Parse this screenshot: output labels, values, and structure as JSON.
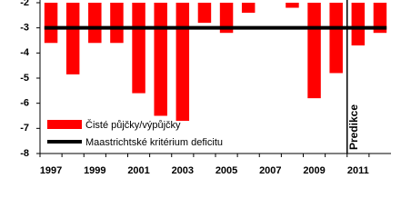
{
  "chart_data": {
    "type": "bar",
    "categories": [
      "1997",
      null,
      "1999",
      null,
      "2001",
      null,
      "2003",
      null,
      "2005",
      null,
      "2007",
      null,
      "2009",
      null,
      "2011",
      null
    ],
    "series": [
      {
        "name": "Čisté půjčky/výpůjčky",
        "color": "#ff0000",
        "values": [
          -3.6,
          -4.85,
          -3.6,
          -3.6,
          -5.6,
          -6.5,
          -6.7,
          -2.8,
          -3.2,
          -2.4,
          null,
          -2.2,
          -5.8,
          -4.8,
          -3.7,
          -3.2
        ]
      }
    ],
    "reference_line": {
      "name": "Maastrichtské kritérium deficitu",
      "value": -3,
      "color": "#000000"
    },
    "divider": {
      "label": "Predikce",
      "before": "2011"
    },
    "ylim": [
      -8,
      -2
    ],
    "yticks": [
      -2,
      -3,
      -4,
      -5,
      -6,
      -7,
      -8
    ]
  }
}
